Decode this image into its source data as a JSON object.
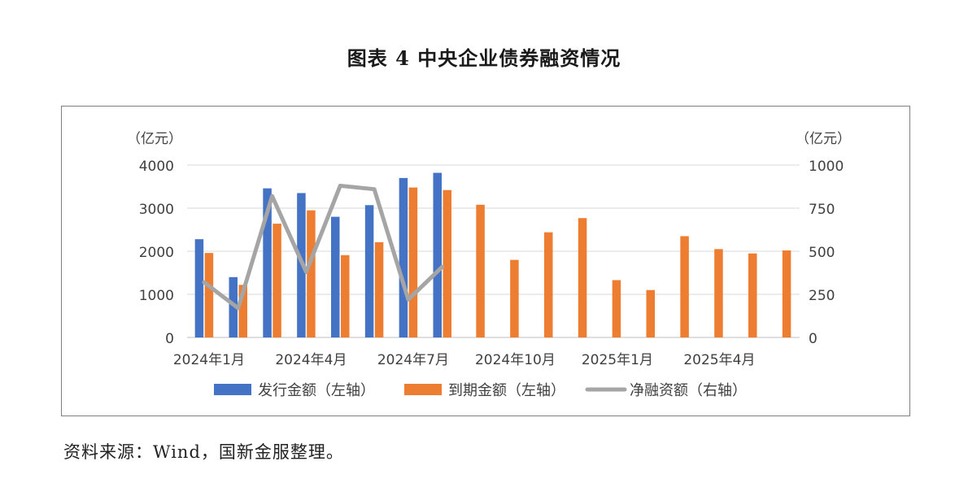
{
  "title": "图表 4  中央企业债券融资情况",
  "source_note": "资料来源：Wind，国新金服整理。",
  "colors": {
    "issue": "#4472c4",
    "maturity": "#ed7d31",
    "net": "#a5a5a5",
    "grid": "#d9d9d9"
  },
  "chart_data": {
    "type": "bar",
    "title": "图表 4  中央企业债券融资情况",
    "left_axis_unit": "（亿元）",
    "right_axis_unit": "（亿元）",
    "ylim_left": [
      0,
      4000
    ],
    "ylim_right": [
      0,
      1000
    ],
    "yticks_left": [
      "0",
      "1000",
      "2000",
      "3000",
      "4000"
    ],
    "yticks_right": [
      "0",
      "250",
      "500",
      "750",
      "1000"
    ],
    "grid": true,
    "legend_position": "bottom",
    "categories": [
      "2024年1月",
      "2024年2月",
      "2024年3月",
      "2024年4月",
      "2024年5月",
      "2024年6月",
      "2024年7月",
      "2024年8月",
      "2024年9月",
      "2024年10月",
      "2024年11月",
      "2024年12月",
      "2025年1月",
      "2025年2月",
      "2025年3月",
      "2025年4月",
      "2025年5月",
      "2025年6月"
    ],
    "x_tick_labels": [
      {
        "index": 0,
        "label": "2024年1月"
      },
      {
        "index": 3,
        "label": "2024年4月"
      },
      {
        "index": 6,
        "label": "2024年7月"
      },
      {
        "index": 9,
        "label": "2024年10月"
      },
      {
        "index": 12,
        "label": "2025年1月"
      },
      {
        "index": 15,
        "label": "2025年4月"
      }
    ],
    "series": [
      {
        "name": "发行金额（左轴）",
        "type": "bar",
        "axis": "left",
        "values": [
          2280,
          1400,
          3460,
          3350,
          2800,
          3070,
          3700,
          3820,
          null,
          null,
          null,
          null,
          null,
          null,
          null,
          null,
          null,
          null
        ]
      },
      {
        "name": "到期金额（左轴）",
        "type": "bar",
        "axis": "left",
        "values": [
          1960,
          1220,
          2640,
          2950,
          1910,
          2210,
          3480,
          3420,
          3080,
          1800,
          2440,
          2770,
          1330,
          1100,
          2350,
          2050,
          1950,
          2020
        ]
      },
      {
        "name": "净融资额（右轴）",
        "type": "line",
        "axis": "right",
        "values": [
          320,
          170,
          820,
          380,
          880,
          860,
          220,
          410,
          null,
          null,
          null,
          null,
          null,
          null,
          null,
          null,
          null,
          null
        ]
      }
    ]
  }
}
